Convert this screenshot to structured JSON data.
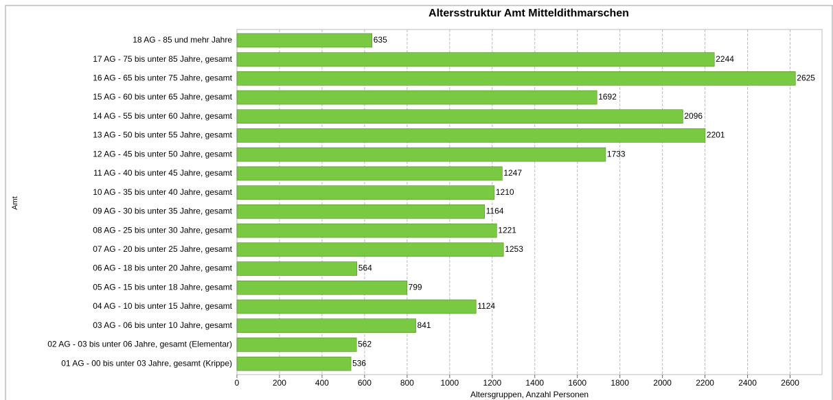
{
  "chart_data": {
    "type": "barh",
    "title": "Altersstruktur Amt Mitteldithmarschen",
    "xlabel": "Altersgruppen, Anzahl Personen",
    "ylabel": "Amt",
    "categories": [
      "18 AG - 85 und mehr Jahre",
      "17 AG - 75 bis unter 85 Jahre, gesamt",
      "16 AG - 65 bis unter 75 Jahre, gesamt",
      "15 AG - 60 bis unter 65 Jahre, gesamt",
      "14 AG - 55 bis unter 60 Jahre, gesamt",
      "13 AG - 50 bis unter 55 Jahre, gesamt",
      "12 AG - 45 bis unter 50 Jahre, gesamt",
      "11 AG - 40 bis unter 45 Jahre, gesamt",
      "10 AG - 35 bis unter 40 Jahre, gesamt",
      "09 AG - 30 bis unter 35 Jahre, gesamt",
      "08 AG - 25 bis unter 30 Jahre, gesamt",
      "07 AG - 20 bis unter 25 Jahre, gesamt",
      "06 AG - 18 bis unter 20 Jahre, gesamt",
      "05 AG - 15 bis unter 18 Jahre, gesamt",
      "04 AG - 10 bis unter 15 Jahre, gesamt",
      "03 AG - 06 bis unter 10 Jahre, gesamt",
      "02 AG - 03 bis unter 06 Jahre, gesamt (Elementar)",
      "01 AG - 00 bis unter 03 Jahre, gesamt (Krippe)"
    ],
    "values": [
      635,
      2244,
      2625,
      1692,
      2096,
      2201,
      1733,
      1247,
      1210,
      1164,
      1221,
      1253,
      564,
      799,
      1124,
      841,
      562,
      536
    ],
    "color": "#7ac943",
    "xlim": [
      0,
      2750
    ],
    "xticks": [
      0,
      200,
      400,
      600,
      800,
      1000,
      1200,
      1400,
      1600,
      1800,
      2000,
      2200,
      2400,
      2600
    ],
    "grid": true
  }
}
